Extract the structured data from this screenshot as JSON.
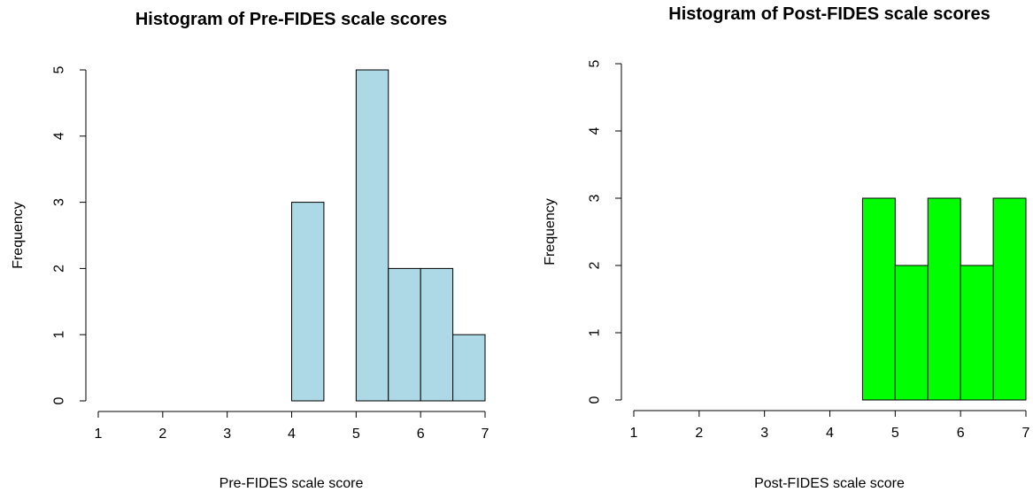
{
  "chart_data": [
    {
      "type": "bar",
      "title": "Histogram of Pre-FIDES scale scores",
      "xlabel": "Pre-FIDES scale score",
      "ylabel": "Frequency",
      "bin_edges": [
        1,
        1.5,
        2,
        2.5,
        3,
        3.5,
        4,
        4.5,
        5,
        5.5,
        6,
        6.5,
        7
      ],
      "values": [
        0,
        0,
        0,
        0,
        0,
        0,
        3,
        0,
        5,
        2,
        2,
        1
      ],
      "xlim": [
        1,
        7
      ],
      "ylim": [
        0,
        5
      ],
      "x_ticks": [
        "1",
        "2",
        "3",
        "4",
        "5",
        "6",
        "7"
      ],
      "y_ticks": [
        "0",
        "1",
        "2",
        "3",
        "4",
        "5"
      ],
      "bar_color": "#add8e6",
      "grid": false
    },
    {
      "type": "bar",
      "title": "Histogram of Post-FIDES scale scores",
      "xlabel": "Post-FIDES scale score",
      "ylabel": "Frequency",
      "bin_edges": [
        1,
        1.5,
        2,
        2.5,
        3,
        3.5,
        4,
        4.5,
        5,
        5.5,
        6,
        6.5,
        7
      ],
      "values": [
        0,
        0,
        0,
        0,
        0,
        0,
        0,
        3,
        2,
        3,
        2,
        3
      ],
      "xlim": [
        1,
        7
      ],
      "ylim": [
        0,
        5
      ],
      "x_ticks": [
        "1",
        "2",
        "3",
        "4",
        "5",
        "6",
        "7"
      ],
      "y_ticks": [
        "0",
        "1",
        "2",
        "3",
        "4",
        "5"
      ],
      "bar_color": "#00ff00",
      "grid": false
    }
  ]
}
